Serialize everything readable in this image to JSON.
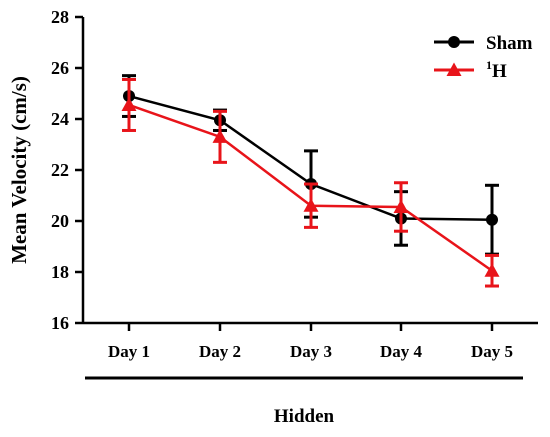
{
  "chart_data": {
    "type": "line",
    "categories": [
      "Day 1",
      "Day 2",
      "Day 3",
      "Day 4",
      "Day 5"
    ],
    "series": [
      {
        "name": "Sham",
        "color": "#000000",
        "marker": "circle",
        "values": [
          24.9,
          23.95,
          21.45,
          20.1,
          20.05
        ],
        "error": [
          0.8,
          0.4,
          1.3,
          1.05,
          1.35
        ]
      },
      {
        "name": "H",
        "name_superscript": "1",
        "color": "#e8141a",
        "marker": "triangle",
        "values": [
          24.55,
          23.3,
          20.6,
          20.55,
          18.05
        ],
        "error": [
          1.0,
          1.0,
          0.85,
          0.95,
          0.6
        ]
      }
    ],
    "ylabel": "Mean Velocity (cm/s)",
    "xlabel": "Hidden",
    "ylim": [
      16,
      28
    ],
    "yticks": [
      "16",
      "18",
      "20",
      "22",
      "24",
      "26",
      "28"
    ],
    "grid": false,
    "legend_position": "top-right"
  }
}
